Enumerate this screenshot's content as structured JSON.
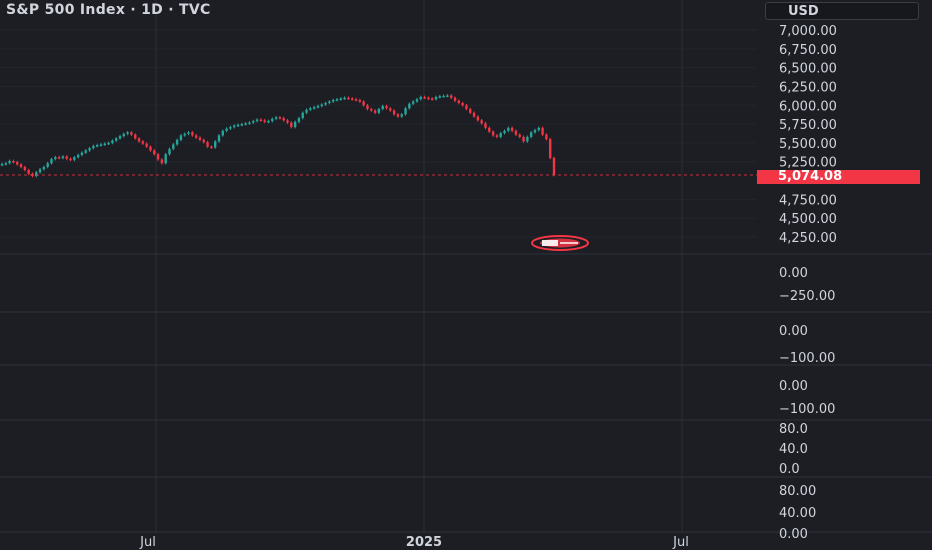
{
  "header": {
    "title": "S&P 500 Index · 1D · TVC",
    "currency": "USD"
  },
  "price_badge": "5,074.08",
  "colors": {
    "up": "#26a69a",
    "down": "#f23645",
    "background": "#1c1e24",
    "grid": "#2a2d35",
    "text": "#d1d4dc"
  },
  "icons": [
    "flag-marker-icon"
  ],
  "chart_data": [
    {
      "type": "candlestick",
      "pane": "price",
      "yaxis_ticks": [
        "7,000.00",
        "6,750.00",
        "6,500.00",
        "6,250.00",
        "6,000.00",
        "5,750.00",
        "5,500.00",
        "5,250.00",
        "5,074.08",
        "4,750.00",
        "4,500.00",
        "4,250.00"
      ],
      "ylim": [
        4250,
        7000
      ],
      "last_price": 5074.08,
      "x_ticks": [
        "Jul",
        "2025",
        "Jul"
      ],
      "series_close": [
        5220,
        5230,
        5260,
        5245,
        5215,
        5180,
        5140,
        5090,
        5060,
        5110,
        5150,
        5180,
        5230,
        5285,
        5310,
        5300,
        5320,
        5290,
        5275,
        5310,
        5340,
        5370,
        5400,
        5430,
        5460,
        5470,
        5480,
        5490,
        5500,
        5530,
        5560,
        5590,
        5620,
        5640,
        5610,
        5560,
        5520,
        5490,
        5450,
        5400,
        5350,
        5280,
        5230,
        5350,
        5420,
        5480,
        5540,
        5600,
        5620,
        5640,
        5600,
        5570,
        5540,
        5510,
        5450,
        5440,
        5520,
        5600,
        5660,
        5690,
        5710,
        5730,
        5740,
        5750,
        5760,
        5770,
        5790,
        5810,
        5800,
        5780,
        5790,
        5820,
        5840,
        5830,
        5800,
        5770,
        5710,
        5780,
        5830,
        5900,
        5940,
        5960,
        5975,
        5990,
        6010,
        6030,
        6050,
        6070,
        6080,
        6090,
        6100,
        6090,
        6080,
        6070,
        6050,
        6000,
        5950,
        5930,
        5900,
        5950,
        5990,
        5960,
        5930,
        5880,
        5850,
        5880,
        5960,
        6020,
        6050,
        6080,
        6110,
        6100,
        6090,
        6080,
        6110,
        6120,
        6125,
        6130,
        6100,
        6060,
        6030,
        6000,
        5950,
        5900,
        5850,
        5800,
        5760,
        5700,
        5650,
        5600,
        5580,
        5630,
        5660,
        5700,
        5660,
        5610,
        5580,
        5520,
        5580,
        5640,
        5670,
        5700,
        5610,
        5550,
        5300,
        5074.08
      ]
    },
    {
      "type": "line",
      "pane": "indicator-1",
      "yaxis_ticks": [
        "0.00",
        "−250.00"
      ]
    },
    {
      "type": "line",
      "pane": "indicator-2",
      "yaxis_ticks": [
        "0.00",
        "−100.00"
      ]
    },
    {
      "type": "line",
      "pane": "indicator-3",
      "yaxis_ticks": [
        "0.00",
        "−100.00"
      ]
    },
    {
      "type": "line",
      "pane": "indicator-4",
      "yaxis_ticks": [
        "80.0",
        "40.0",
        "0.0"
      ]
    },
    {
      "type": "line",
      "pane": "indicator-5",
      "yaxis_ticks": [
        "80.00",
        "40.00",
        "0.00"
      ]
    }
  ]
}
